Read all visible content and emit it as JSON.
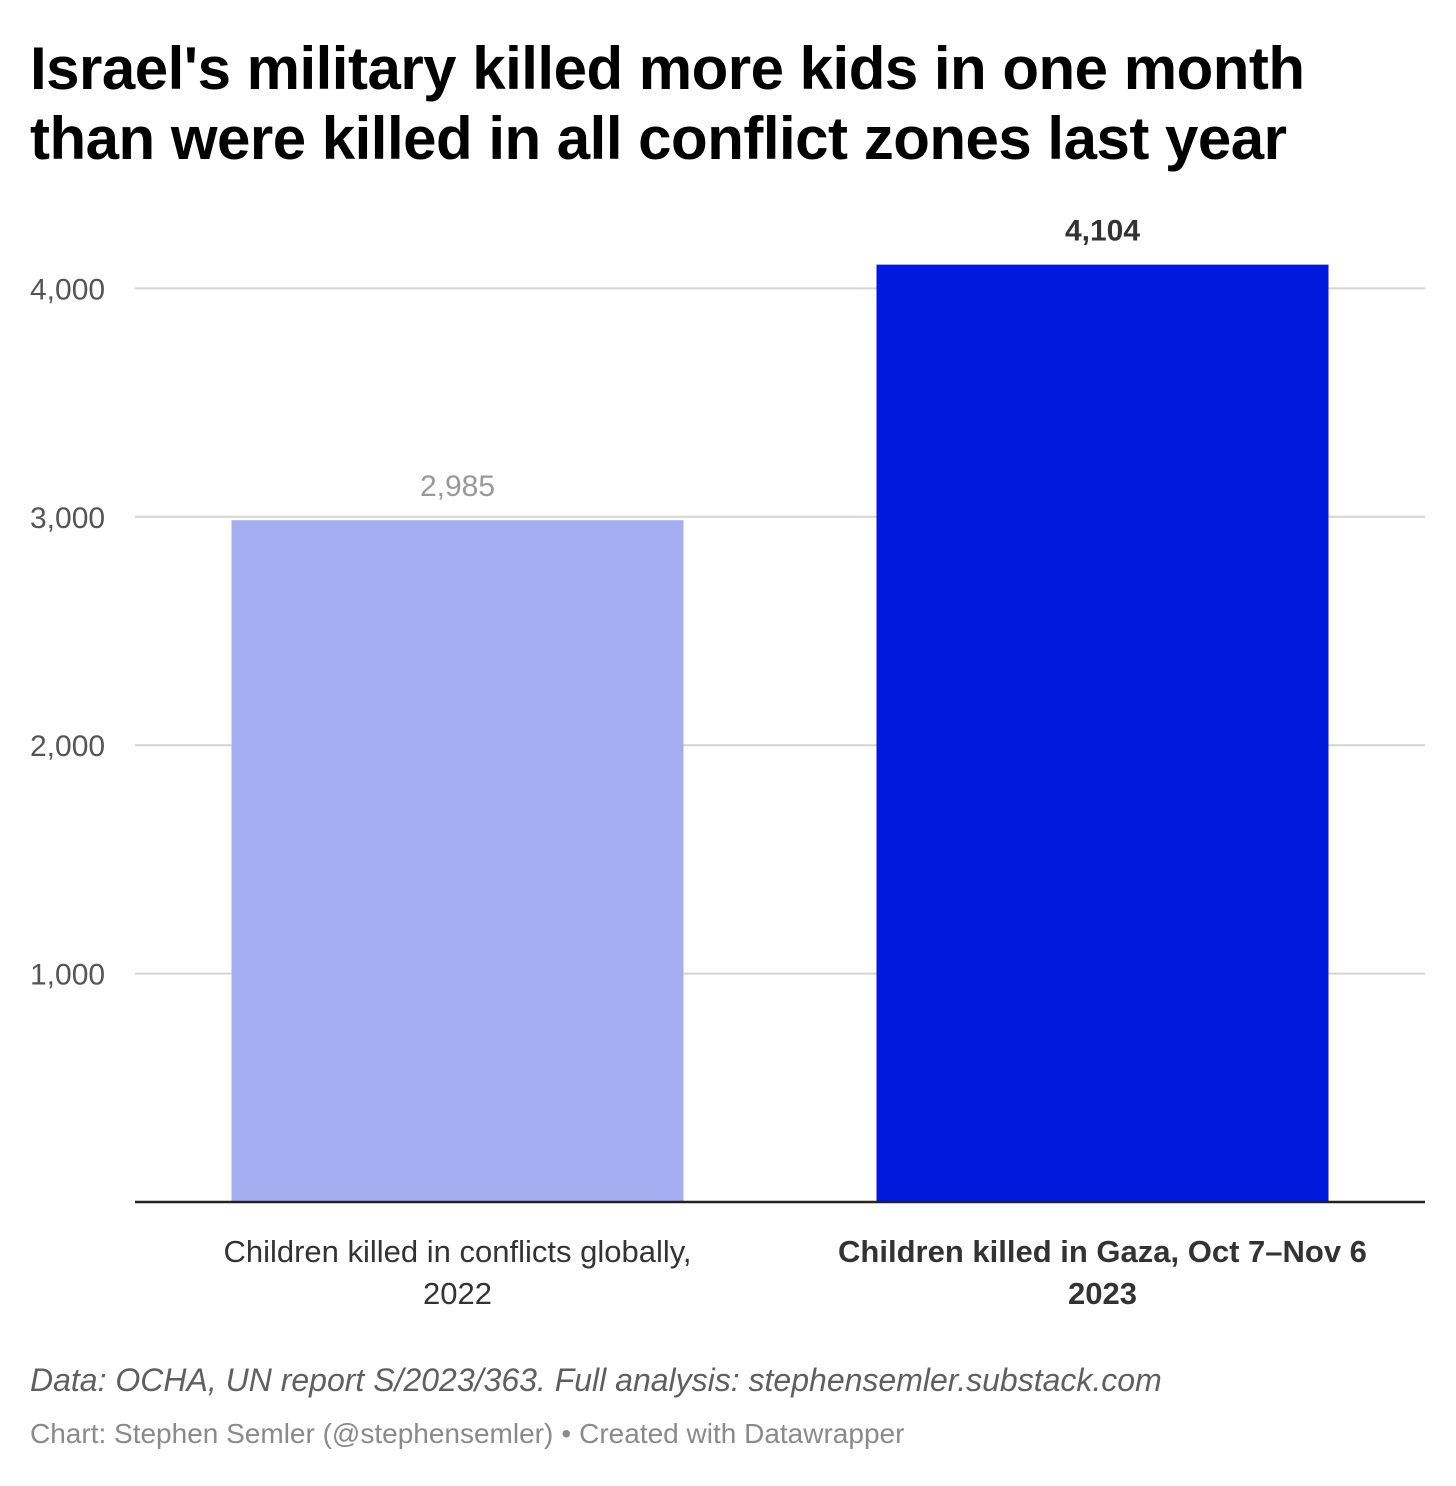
{
  "header": {
    "title_lines": [
      "Israel's military killed more kids in one month",
      "than were killed in all conflict zones last year"
    ]
  },
  "chart_data": {
    "type": "bar",
    "categories": [
      [
        "Children killed in conflicts globally,",
        "2022"
      ],
      [
        "Children killed in Gaza, Oct 7–Nov 6",
        "2023"
      ]
    ],
    "values": [
      2985,
      4104
    ],
    "value_labels": [
      "2,985",
      "4,104"
    ],
    "colors": [
      "#a5aef0",
      "#0019dd"
    ],
    "highlighted": [
      false,
      true
    ],
    "yticks": [
      1000,
      2000,
      3000,
      4000
    ],
    "ytick_labels": [
      "1,000",
      "2,000",
      "3,000",
      "4,000"
    ],
    "ylim": [
      0,
      4104
    ],
    "grid": true,
    "legend": "none"
  },
  "footer": {
    "notes": "Data: OCHA, UN report S/2023/363. Full analysis: stephensemler.substack.com",
    "byline_chart": "Chart: Stephen Semler (@stephensemler)",
    "byline_separator": "•",
    "byline_tool": "Created with Datawrapper"
  }
}
